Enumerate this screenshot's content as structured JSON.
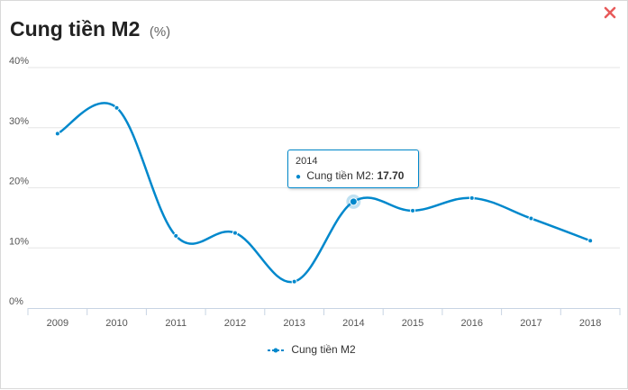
{
  "header": {
    "title": "Cung tiền M2",
    "unit": "(%)"
  },
  "close_icon": "close-icon",
  "colors": {
    "series": "#0088cc",
    "close": "#e85a5a",
    "grid": "#e6e6e6"
  },
  "tooltip": {
    "year": "2014",
    "series_label": "Cung tiền M2:",
    "value": "17.70"
  },
  "legend": {
    "label": "Cung tiền M2"
  },
  "chart_data": {
    "type": "line",
    "categories": [
      "2009",
      "2010",
      "2011",
      "2012",
      "2013",
      "2014",
      "2015",
      "2016",
      "2017",
      "2018"
    ],
    "series": [
      {
        "name": "Cung tiền M2",
        "values": [
          29.0,
          33.3,
          12.0,
          12.5,
          4.4,
          17.7,
          16.2,
          18.3,
          14.9,
          11.2
        ]
      }
    ],
    "y_ticks": [
      "0%",
      "10%",
      "20%",
      "30%",
      "40%"
    ],
    "ylim": [
      0,
      40
    ],
    "grid": true,
    "legend_position": "bottom"
  }
}
